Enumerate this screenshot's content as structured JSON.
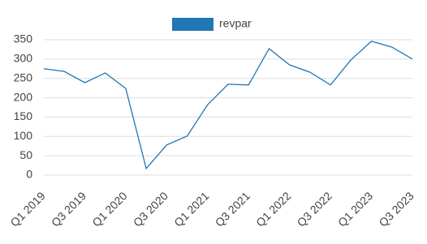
{
  "chart_data": {
    "type": "line",
    "categories": [
      "Q1 2019",
      null,
      "Q3 2019",
      null,
      "Q1 2020",
      null,
      "Q3 2020",
      null,
      "Q1 2021",
      null,
      "Q3 2021",
      null,
      "Q1 2022",
      null,
      "Q3 2022",
      null,
      "Q1 2023",
      null,
      "Q3 2023"
    ],
    "series": [
      {
        "name": "revpar",
        "color": "#1f77b4",
        "values": [
          275,
          268,
          239,
          264,
          224,
          17,
          78,
          101,
          182,
          235,
          233,
          327,
          285,
          266,
          233,
          298,
          346,
          331,
          300
        ]
      }
    ],
    "ylim": [
      0,
      350
    ],
    "yticks": [
      0,
      50,
      100,
      150,
      200,
      250,
      300,
      350
    ],
    "grid": true,
    "legend": "top"
  }
}
